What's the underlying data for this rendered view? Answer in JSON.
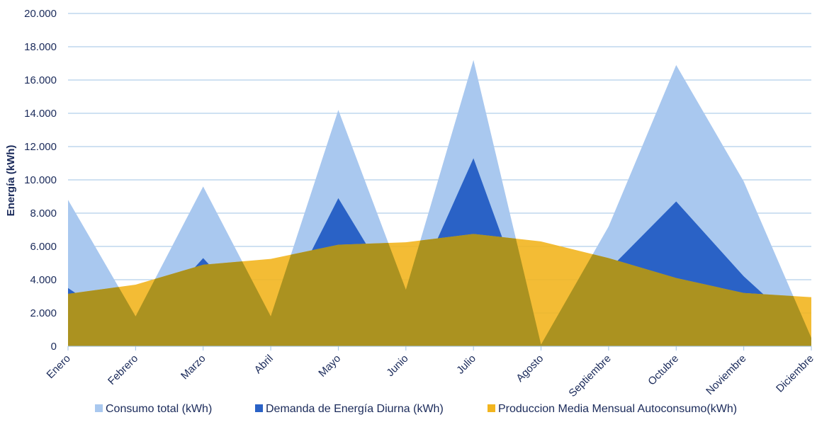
{
  "chart_data": {
    "type": "area",
    "title": "",
    "xlabel": "",
    "ylabel": "Energía (kWh)",
    "ylim": [
      0,
      20000
    ],
    "y_ticks": [
      "0",
      "2.000",
      "4.000",
      "6.000",
      "8.000",
      "10.000",
      "12.000",
      "14.000",
      "16.000",
      "18.000",
      "20.000"
    ],
    "categories": [
      "Enero",
      "Febrero",
      "Marzo",
      "Abril",
      "Mayo",
      "Junio",
      "Julio",
      "Agosto",
      "Septiembre",
      "Octubre",
      "Noviembre",
      "Diciembre"
    ],
    "grid": true,
    "legend_position": "bottom",
    "series": [
      {
        "name": "Consumo total (kWh)",
        "color": "#a9c8ef",
        "values": [
          8800,
          1800,
          9600,
          1800,
          14200,
          3400,
          17200,
          100,
          7200,
          16900,
          9900,
          500
        ]
      },
      {
        "name": "Demanda de Energía Diurna (kWh)",
        "color": "#2a62c6",
        "values": [
          3500,
          800,
          5300,
          900,
          8900,
          2200,
          11300,
          100,
          4600,
          8700,
          4200,
          500
        ]
      },
      {
        "name": "Produccion Media Mensual Autoconsumo(kWh)",
        "color": "#f2b51f",
        "values": [
          3150,
          3700,
          4900,
          5250,
          6100,
          6250,
          6750,
          6300,
          5300,
          4100,
          3200,
          2950
        ]
      }
    ],
    "overlap_color": "#ab9220"
  }
}
